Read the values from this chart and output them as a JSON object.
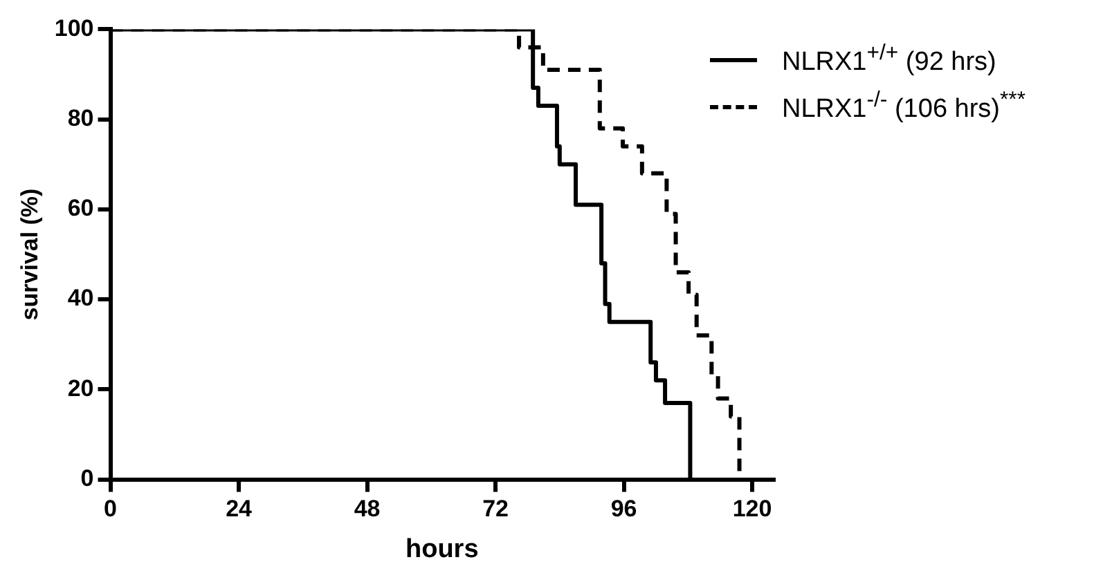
{
  "chart_data": {
    "type": "step",
    "xlabel": "hours",
    "ylabel": "survival (%)",
    "xlim": [
      0,
      124
    ],
    "xticks": [
      0,
      24,
      48,
      72,
      96,
      120
    ],
    "ylim": [
      0,
      100
    ],
    "yticks": [
      0,
      20,
      40,
      60,
      80,
      100
    ],
    "grid": false,
    "legend": "top right",
    "marker": "none",
    "series": [
      {
        "name": "NLRX1$^{+/+}$ (92 hrs)",
        "color": "#000000",
        "line_style": "solid",
        "x": [
          0,
          79,
          80,
          83.5,
          84,
          87,
          91.8,
          92.5,
          93.3,
          101,
          102,
          103.7,
          108.4
        ],
        "values": [
          100,
          87,
          83,
          74,
          70,
          61,
          48,
          39,
          35,
          26,
          22,
          17,
          0
        ]
      },
      {
        "name": "NLRX1$^{-/-}$ (106 hrs)$^{***}$",
        "color": "#000000",
        "line_style": "dashed",
        "x": [
          0,
          76.4,
          80.9,
          91.5,
          95.8,
          99.4,
          104,
          105.7,
          108.1,
          109.6,
          112.4,
          113.6,
          116,
          117.6
        ],
        "values": [
          100,
          96,
          91,
          78,
          74,
          68,
          59,
          46,
          41,
          32,
          23,
          18,
          14,
          0
        ]
      }
    ]
  }
}
